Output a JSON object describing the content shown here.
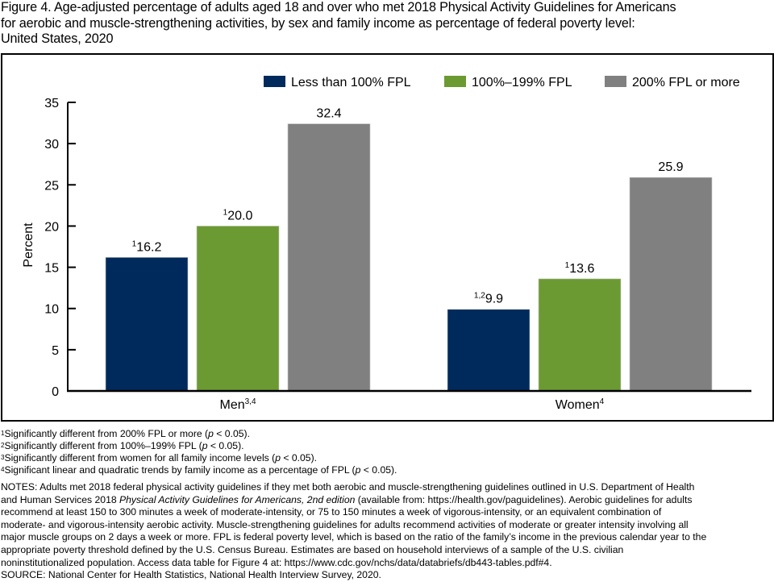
{
  "title": "Figure 4. Age-adjusted percentage of adults aged 18 and over who met 2018 Physical Activity Guidelines for Americans for aerobic and muscle-strengthening activities, by sex and family income as percentage of federal poverty level: United States, 2020",
  "title_lines": [
    "Figure 4. Age-adjusted percentage of adults aged 18 and over who met 2018 Physical Activity Guidelines for Americans",
    "for aerobic and muscle-strengthening activities, by sex and family income as percentage of federal poverty level:",
    "United States, 2020"
  ],
  "chart_data": {
    "type": "bar",
    "title": "Age-adjusted percentage of adults aged 18 and over who met 2018 Physical Activity Guidelines for Americans for aerobic and muscle-strengthening activities, by sex and family income as percentage of federal poverty level: United States, 2020",
    "xlabel": "",
    "ylabel": "Percent",
    "ylim": [
      0,
      35
    ],
    "yticks": [
      0,
      5,
      10,
      15,
      20,
      25,
      30,
      35
    ],
    "grid": false,
    "legend_position": "top-right",
    "categories": [
      {
        "label": "Men",
        "superscript": "3,4"
      },
      {
        "label": "Women",
        "superscript": "4"
      }
    ],
    "series": [
      {
        "name": "Less than 100% FPL",
        "color": "#002a5c",
        "values": [
          16.2,
          9.9
        ],
        "label_superscripts": [
          "1",
          "1,2"
        ]
      },
      {
        "name": "100%–199% FPL",
        "color": "#6c9a32",
        "values": [
          20.0,
          13.6
        ],
        "label_superscripts": [
          "1",
          "1"
        ]
      },
      {
        "name": "200% FPL or more",
        "color": "#808080",
        "values": [
          32.4,
          25.9
        ],
        "label_superscripts": [
          "",
          ""
        ]
      }
    ]
  },
  "footnotes": [
    {
      "mark": "1",
      "text": "Significantly different from 200% FPL or more (",
      "p": "p",
      "tail": " < 0.05)."
    },
    {
      "mark": "2",
      "text": "Significantly different from 100%–199% FPL (",
      "p": "p",
      "tail": " < 0.05)."
    },
    {
      "mark": "3",
      "text": "Significantly different from women for all family income levels (",
      "p": "p",
      "tail": " < 0.05)."
    },
    {
      "mark": "4",
      "text": "Significant linear and quadratic trends by family income as a percentage of FPL (",
      "p": "p",
      "tail": " < 0.05)."
    }
  ],
  "notes": {
    "line1": "NOTES: Adults met 2018 federal physical activity guidelines if they met both aerobic and muscle-strengthening guidelines outlined in U.S. Department of Health",
    "line2_pre": "and Human Services 2018 ",
    "line2_italic": "Physical Activity Guidelines for Americans, 2nd edition",
    "line2_post": " (available from: https://health.gov/paguidelines). Aerobic guidelines for adults",
    "line3": "recommend at least 150 to 300 minutes a week of moderate-intensity, or 75 to 150 minutes  a week of vigorous-intensity, or an equivalent combination of",
    "line4": "moderate- and vigorous-intensity aerobic activity. Muscle-strengthening guidelines for adults recommend activities of moderate or greater intensity involving all",
    "line5": "major muscle groups on 2 days a week or more. FPL is federal poverty level, which is based on the ratio of the family’s income in the previous calendar year to the",
    "line6": "appropriate poverty threshold defined by the U.S. Census Bureau. Estimates are based on household interviews of a sample of the U.S. civilian",
    "line7": "noninstitutionalized  population. Access data table for Figure 4 at: https://www.cdc.gov/nchs/data/databriefs/db443-tables.pdf#4.",
    "source": "SOURCE: National Center for Health Statistics, National Health Interview Survey, 2020."
  }
}
